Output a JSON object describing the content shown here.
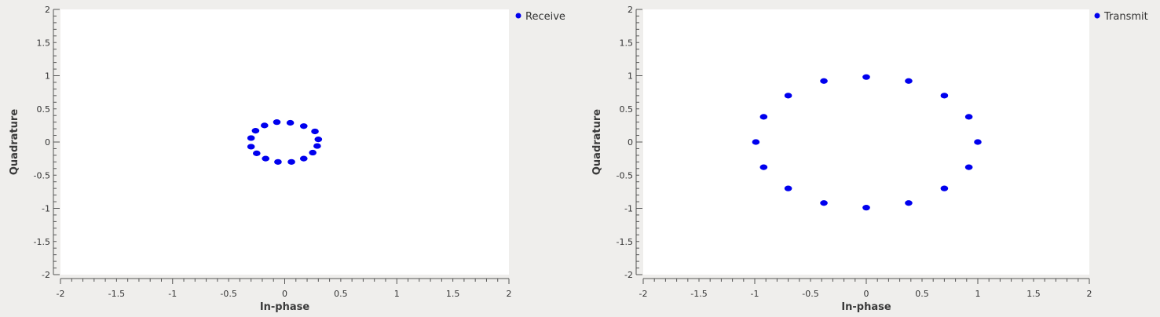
{
  "chart_data": [
    {
      "type": "scatter",
      "xlabel": "In-phase",
      "ylabel": "Quadrature",
      "xlim": [
        -2,
        2
      ],
      "ylim": [
        -2,
        2
      ],
      "xticks": [
        "-2",
        "-1.5",
        "-1",
        "-0.5",
        "0",
        "0.5",
        "1",
        "1.5",
        "2"
      ],
      "yticks": [
        "2",
        "1.5",
        "1",
        "0.5",
        "0",
        "-0.5",
        "-1",
        "-1.5",
        "-2"
      ],
      "grid": false,
      "legend": "top-right",
      "series": [
        {
          "name": "Receive",
          "color": "#0000ee",
          "points": [
            [
              0.3,
              0.04
            ],
            [
              0.29,
              -0.06
            ],
            [
              0.27,
              0.16
            ],
            [
              0.25,
              -0.16
            ],
            [
              0.17,
              0.24
            ],
            [
              0.17,
              -0.25
            ],
            [
              0.05,
              0.29
            ],
            [
              0.06,
              -0.3
            ],
            [
              -0.07,
              0.3
            ],
            [
              -0.06,
              -0.3
            ],
            [
              -0.18,
              0.25
            ],
            [
              -0.17,
              -0.25
            ],
            [
              -0.26,
              0.17
            ],
            [
              -0.25,
              -0.17
            ],
            [
              -0.3,
              0.06
            ],
            [
              -0.3,
              -0.07
            ]
          ]
        }
      ]
    },
    {
      "type": "scatter",
      "xlabel": "In-phase",
      "ylabel": "Quadrature",
      "xlim": [
        -2,
        2
      ],
      "ylim": [
        -2,
        2
      ],
      "xticks": [
        "-2",
        "-1.5",
        "-1",
        "-0.5",
        "0",
        "0.5",
        "1",
        "1.5",
        "2"
      ],
      "yticks": [
        "2",
        "1.5",
        "1",
        "0.5",
        "0",
        "-0.5",
        "-1",
        "-1.5",
        "-2"
      ],
      "grid": false,
      "legend": "top-right",
      "series": [
        {
          "name": "Transmit",
          "color": "#0000ee",
          "points": [
            [
              1.0,
              0.0
            ],
            [
              0.92,
              0.38
            ],
            [
              0.7,
              0.7
            ],
            [
              0.38,
              0.92
            ],
            [
              0.0,
              0.98
            ],
            [
              -0.38,
              0.92
            ],
            [
              -0.7,
              0.7
            ],
            [
              -0.92,
              0.38
            ],
            [
              -0.99,
              0.0
            ],
            [
              -0.92,
              -0.38
            ],
            [
              -0.7,
              -0.7
            ],
            [
              -0.38,
              -0.92
            ],
            [
              0.0,
              -0.99
            ],
            [
              0.38,
              -0.92
            ],
            [
              0.7,
              -0.7
            ],
            [
              0.92,
              -0.38
            ]
          ]
        }
      ]
    }
  ]
}
